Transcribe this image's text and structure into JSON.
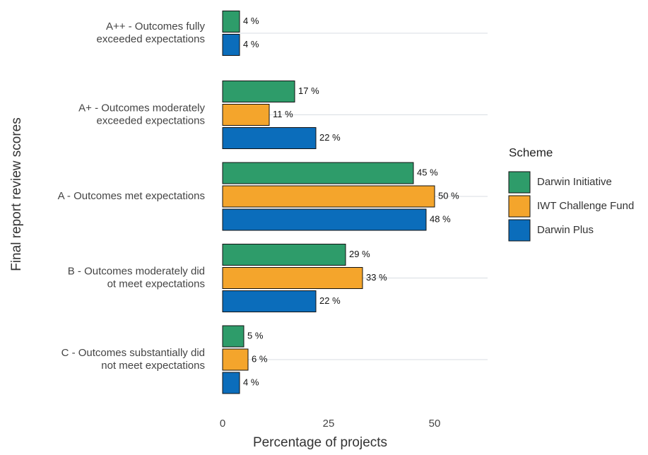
{
  "chart_data": {
    "type": "bar",
    "orientation": "horizontal",
    "x_label": "Percentage of projects",
    "y_label": "Final report review scores",
    "legend_title": "Scheme",
    "legend_position": "right",
    "categories": [
      "A++ - Outcomes fully\nexceeded expectations",
      "A+ - Outcomes moderately\nexceeded expectations",
      "A - Outcomes met expectations",
      "B - Outcomes moderately did\not meet expectations",
      "C - Outcomes substantially did\nnot meet expectations"
    ],
    "series": [
      {
        "name": "Darwin Initiative",
        "color": "#2e9c6a",
        "values": [
          4,
          17,
          45,
          29,
          5
        ],
        "value_labels": [
          "4 %",
          "17 %",
          "45 %",
          "29 %",
          "5 %"
        ]
      },
      {
        "name": "IWT Challenge Fund",
        "color": "#f4a52c",
        "values": [
          null,
          11,
          50,
          33,
          6
        ],
        "value_labels": [
          null,
          "11 %",
          "50 %",
          "33 %",
          "6 %"
        ]
      },
      {
        "name": "Darwin Plus",
        "color": "#0b6dbb",
        "values": [
          4,
          22,
          48,
          22,
          4
        ],
        "value_labels": [
          "4 %",
          "22 %",
          "48 %",
          "22 %",
          "4 %"
        ]
      }
    ],
    "xlim": [
      0,
      62.5
    ],
    "xticks": [
      0,
      25,
      50
    ],
    "grid": true
  }
}
